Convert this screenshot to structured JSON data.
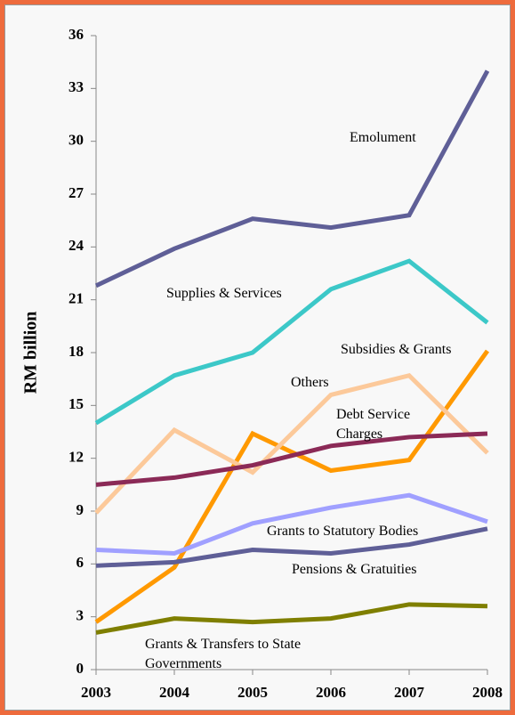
{
  "chart_data": {
    "type": "line",
    "ylabel": "RM billion",
    "x": [
      "2003",
      "2004",
      "2005",
      "2006",
      "2007",
      "2008"
    ],
    "ylim": [
      0,
      36
    ],
    "yticks": [
      0,
      3,
      6,
      9,
      12,
      15,
      18,
      21,
      24,
      27,
      30,
      33,
      36
    ],
    "series": [
      {
        "name": "Emolument",
        "color": "#5f5f97",
        "values": [
          21.8,
          23.9,
          25.6,
          25.1,
          25.8,
          34.0
        ]
      },
      {
        "name": "Supplies & Services",
        "color": "#3cc8c8",
        "values": [
          14.0,
          16.7,
          18.0,
          21.6,
          23.2,
          19.7
        ]
      },
      {
        "name": "Subsidies & Grants",
        "color": "#ff9900",
        "values": [
          2.7,
          5.8,
          13.4,
          11.3,
          11.9,
          18.1
        ]
      },
      {
        "name": "Others",
        "color": "#fcc99a",
        "values": [
          8.9,
          13.6,
          11.2,
          15.6,
          16.7,
          12.3
        ]
      },
      {
        "name": "Debt Service Charges",
        "color": "#8b2a57",
        "values": [
          10.5,
          10.9,
          11.6,
          12.7,
          13.2,
          13.4
        ]
      },
      {
        "name": "Grants to Statutory Bodies",
        "color": "#a0a0ff",
        "values": [
          6.8,
          6.6,
          8.3,
          9.2,
          9.9,
          8.4
        ]
      },
      {
        "name": "Pensions & Gratuities",
        "color": "#5f5f97",
        "values": [
          5.9,
          6.1,
          6.8,
          6.6,
          7.1,
          8.0
        ]
      },
      {
        "name": "Grants & Transfers to State Governments",
        "color": "#7f7f00",
        "values": [
          2.1,
          2.9,
          2.7,
          2.9,
          3.7,
          3.6
        ]
      }
    ]
  }
}
